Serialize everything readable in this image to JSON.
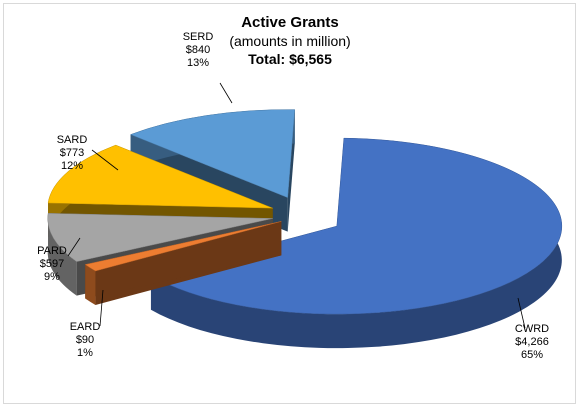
{
  "chart_data": {
    "type": "pie",
    "title": "Active Grants",
    "subtitle": "(amounts in million)",
    "total_label": "Total: $6,565",
    "slices": [
      {
        "name": "CWRD",
        "amount": "$4,266",
        "percent": "65%",
        "value": 4266,
        "color": "#4472c4"
      },
      {
        "name": "EARD",
        "amount": "$90",
        "percent": "1%",
        "value": 90,
        "color": "#ed7d31"
      },
      {
        "name": "PARD",
        "amount": "$597",
        "percent": "9%",
        "value": 597,
        "color": "#a5a5a5"
      },
      {
        "name": "SARD",
        "amount": "$773",
        "percent": "12%",
        "value": 773,
        "color": "#ffc000"
      },
      {
        "name": "SERD",
        "amount": "$840",
        "percent": "13%",
        "value": 840,
        "color": "#5b9bd5"
      }
    ]
  }
}
